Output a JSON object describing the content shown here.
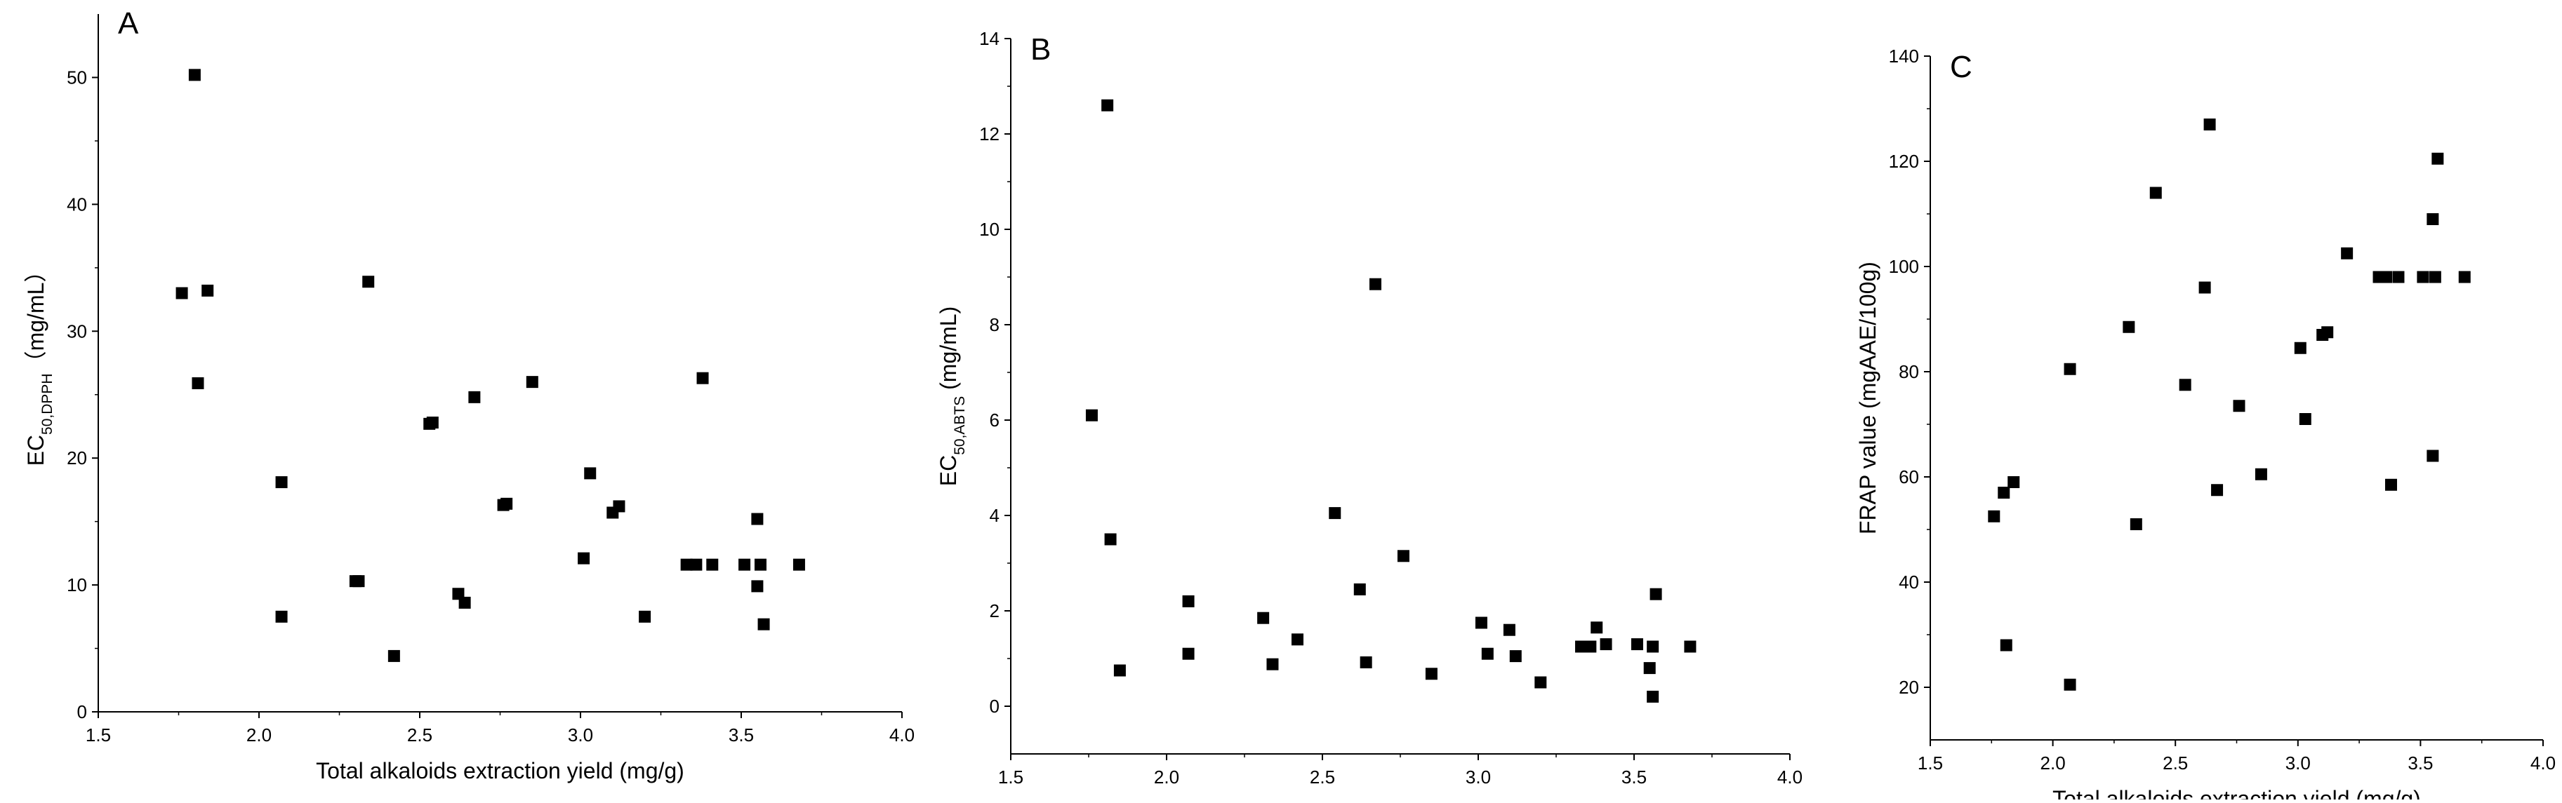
{
  "chart_data": [
    {
      "type": "scatter",
      "panel_label": "A",
      "xlabel": "Total alkaloids extraction yield (mg/g)",
      "ylabel": {
        "prefix": "EC",
        "sub": "50,DPPH",
        "suffix": "（mg/mL）"
      },
      "xlim": [
        1.5,
        4.0
      ],
      "ylim": [
        0,
        55
      ],
      "xticks": [
        1.5,
        2.0,
        2.5,
        3.0,
        3.5,
        4.0
      ],
      "xtick_labels": [
        "1.5",
        "2.0",
        "2.5",
        "3.0",
        "3.5",
        "4.0"
      ],
      "yticks": [
        0,
        10,
        20,
        30,
        40,
        50
      ],
      "ytick_labels": [
        "0",
        "10",
        "20",
        "30",
        "40",
        "50"
      ],
      "grid": false,
      "marker": "square",
      "points": [
        [
          1.76,
          33.0
        ],
        [
          1.8,
          50.2
        ],
        [
          1.81,
          25.9
        ],
        [
          1.84,
          33.2
        ],
        [
          2.07,
          18.1
        ],
        [
          2.07,
          7.5
        ],
        [
          2.3,
          10.3
        ],
        [
          2.31,
          10.3
        ],
        [
          2.34,
          33.9
        ],
        [
          2.42,
          4.4
        ],
        [
          2.53,
          22.7
        ],
        [
          2.54,
          22.8
        ],
        [
          2.62,
          9.3
        ],
        [
          2.64,
          8.6
        ],
        [
          2.67,
          24.8
        ],
        [
          2.76,
          16.3
        ],
        [
          2.77,
          16.4
        ],
        [
          2.85,
          26.0
        ],
        [
          3.01,
          12.1
        ],
        [
          3.03,
          18.8
        ],
        [
          3.1,
          15.7
        ],
        [
          3.12,
          16.2
        ],
        [
          3.2,
          7.5
        ],
        [
          3.33,
          11.6
        ],
        [
          3.36,
          11.6
        ],
        [
          3.38,
          26.3
        ],
        [
          3.41,
          11.6
        ],
        [
          3.51,
          11.6
        ],
        [
          3.55,
          15.2
        ],
        [
          3.55,
          9.9
        ],
        [
          3.56,
          11.6
        ],
        [
          3.57,
          6.9
        ],
        [
          3.68,
          11.6
        ]
      ]
    },
    {
      "type": "scatter",
      "panel_label": "B",
      "xlabel": "Total alkaloids extraction yield (mg/g)",
      "ylabel": {
        "prefix": "EC",
        "sub": "50,ABTS",
        "suffix": " (mg/mL)"
      },
      "xlim": [
        1.5,
        4.0
      ],
      "ylim": [
        -1,
        14
      ],
      "xticks": [
        1.5,
        2.0,
        2.5,
        3.0,
        3.5,
        4.0
      ],
      "xtick_labels": [
        "1.5",
        "2.0",
        "2.5",
        "3.0",
        "3.5",
        "4.0"
      ],
      "yticks": [
        0,
        2,
        4,
        6,
        8,
        10,
        12,
        14
      ],
      "ytick_labels": [
        "0",
        "2",
        "4",
        "6",
        "8",
        "10",
        "12",
        "14"
      ],
      "grid": false,
      "marker": "square",
      "points": [
        [
          1.76,
          6.1
        ],
        [
          1.81,
          12.6
        ],
        [
          1.82,
          3.5
        ],
        [
          1.85,
          0.75
        ],
        [
          2.07,
          2.2
        ],
        [
          2.07,
          1.1
        ],
        [
          2.31,
          1.85
        ],
        [
          2.34,
          0.88
        ],
        [
          2.42,
          1.4
        ],
        [
          2.54,
          4.05
        ],
        [
          2.62,
          2.45
        ],
        [
          2.64,
          0.92
        ],
        [
          2.67,
          8.85
        ],
        [
          2.76,
          3.15
        ],
        [
          2.85,
          0.68
        ],
        [
          3.01,
          1.75
        ],
        [
          3.03,
          1.1
        ],
        [
          3.1,
          1.6
        ],
        [
          3.12,
          1.05
        ],
        [
          3.2,
          0.5
        ],
        [
          3.33,
          1.25
        ],
        [
          3.36,
          1.25
        ],
        [
          3.38,
          1.65
        ],
        [
          3.41,
          1.3
        ],
        [
          3.51,
          1.3
        ],
        [
          3.55,
          0.8
        ],
        [
          3.56,
          0.2
        ],
        [
          3.56,
          1.25
        ],
        [
          3.57,
          2.35
        ],
        [
          3.68,
          1.25
        ]
      ]
    },
    {
      "type": "scatter",
      "panel_label": "C",
      "xlabel": "Total alkaloids extraction yield (mg/g)",
      "ylabel": {
        "prefix": "FRAP value (mgAAE/100g)",
        "sub": "",
        "suffix": ""
      },
      "xlim": [
        1.5,
        4.0
      ],
      "ylim": [
        10,
        140
      ],
      "xticks": [
        1.5,
        2.0,
        2.5,
        3.0,
        3.5,
        4.0
      ],
      "xtick_labels": [
        "1.5",
        "2.0",
        "2.5",
        "3.0",
        "3.5",
        "4.0"
      ],
      "yticks": [
        20,
        40,
        60,
        80,
        100,
        120,
        140
      ],
      "ytick_labels": [
        "20",
        "40",
        "60",
        "80",
        "100",
        "120",
        "140"
      ],
      "grid": false,
      "marker": "square",
      "points": [
        [
          1.76,
          52.5
        ],
        [
          1.8,
          57.0
        ],
        [
          1.81,
          28.0
        ],
        [
          1.84,
          59.0
        ],
        [
          2.07,
          80.5
        ],
        [
          2.07,
          20.5
        ],
        [
          2.31,
          88.5
        ],
        [
          2.34,
          51.0
        ],
        [
          2.42,
          114.0
        ],
        [
          2.54,
          77.5
        ],
        [
          2.62,
          96.0
        ],
        [
          2.64,
          127.0
        ],
        [
          2.67,
          57.5
        ],
        [
          2.76,
          73.5
        ],
        [
          2.85,
          60.5
        ],
        [
          3.01,
          84.5
        ],
        [
          3.03,
          71.0
        ],
        [
          3.1,
          87.0
        ],
        [
          3.12,
          87.5
        ],
        [
          3.2,
          102.5
        ],
        [
          3.33,
          98.0
        ],
        [
          3.36,
          98.0
        ],
        [
          3.38,
          58.5
        ],
        [
          3.41,
          98.0
        ],
        [
          3.51,
          98.0
        ],
        [
          3.55,
          109.0
        ],
        [
          3.55,
          64.0
        ],
        [
          3.56,
          98.0
        ],
        [
          3.57,
          120.5
        ],
        [
          3.68,
          98.0
        ]
      ]
    }
  ]
}
